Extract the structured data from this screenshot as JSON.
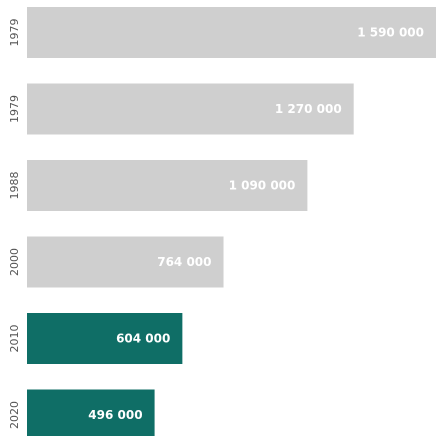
{
  "chart_data": {
    "type": "bar",
    "orientation": "horizontal",
    "categories": [
      "1979",
      "1979",
      "1988",
      "2000",
      "2010",
      "2020"
    ],
    "values": [
      1590000,
      1270000,
      1090000,
      764000,
      604000,
      496000
    ],
    "data_labels": [
      "1 590 000",
      "1 270 000",
      "1 090 000",
      "764 000",
      "604 000",
      "496 000"
    ],
    "title": "",
    "xlabel": "",
    "ylabel": "",
    "xlim": [
      0,
      1590000
    ],
    "grid": false,
    "legend": "none",
    "colors": {
      "default": "#cfcfcf",
      "highlight": "#0f6e66",
      "label": "#ffffff",
      "tick": "#555555"
    },
    "highlight_categories_index": [
      4,
      5
    ]
  }
}
